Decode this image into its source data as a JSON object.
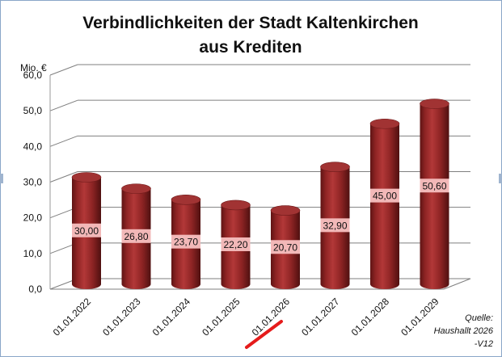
{
  "chart_data": {
    "type": "bar",
    "title": [
      "Verbindlichkeiten der Stadt Kaltenkirchen",
      "aus Krediten"
    ],
    "ylabel": "Mio. €",
    "xlabel": "",
    "categories": [
      "01.01.2022",
      "01.01.2023",
      "01.01.2024",
      "01.01.2025",
      "01.01.2026",
      "01.01.2027",
      "01.01.2028",
      "01.01.2029"
    ],
    "values": [
      30.0,
      26.8,
      23.7,
      22.2,
      20.7,
      32.9,
      45.0,
      50.6
    ],
    "data_labels": [
      "30,00",
      "26,80",
      "23,70",
      "22,20",
      "20,70",
      "32,90",
      "45,00",
      "50,60"
    ],
    "yticks": [
      "0,0",
      "10,0",
      "20,0",
      "30,0",
      "40,0",
      "50,0",
      "60,0"
    ],
    "ylim": [
      0,
      60
    ],
    "grid": true,
    "style": "3d-cylinder",
    "bar_color": "#9a2a2a",
    "label_box_color": "#f2b8b8",
    "highlighted_category": "01.01.2026",
    "highlight_color": "#e51b1b",
    "source_note": [
      "Quelle:",
      "Haushallt 2026",
      "-V12"
    ]
  }
}
